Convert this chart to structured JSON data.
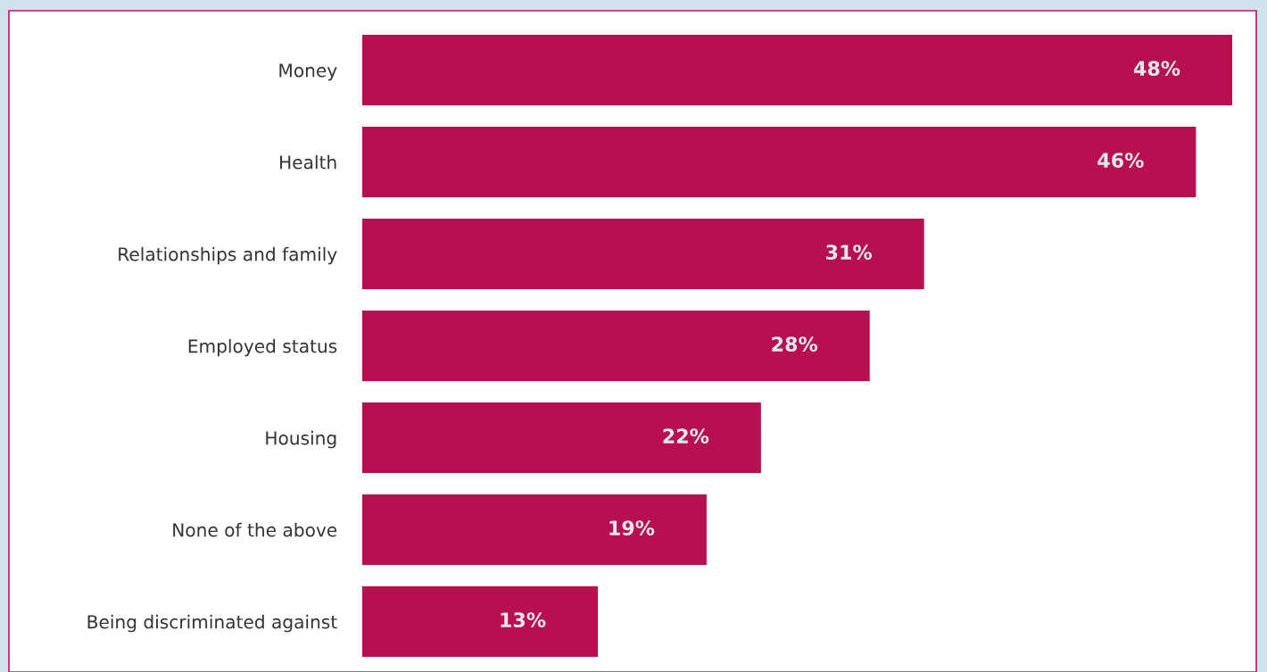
{
  "chart_data": {
    "type": "bar",
    "orientation": "horizontal",
    "categories": [
      "Money",
      "Health",
      "Relationships and family",
      "Employed status",
      "Housing",
      "None of the above",
      "Being discriminated against"
    ],
    "values": [
      48,
      46,
      31,
      28,
      22,
      19,
      13
    ],
    "value_labels": [
      "48%",
      "46%",
      "31%",
      "28%",
      "22%",
      "19%",
      "13%"
    ],
    "color": "#b80f4f"
  }
}
